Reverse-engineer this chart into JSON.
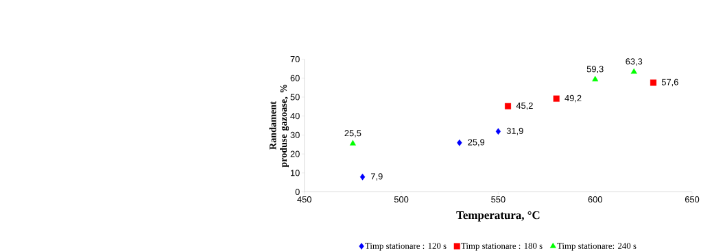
{
  "chart_data": {
    "type": "scatter",
    "xlabel": "Temperatura, °C",
    "ylabel": "Randament produse gazoase, %",
    "xlim": [
      450,
      650
    ],
    "xticks": [
      450,
      500,
      550,
      600,
      650
    ],
    "ylim": [
      0,
      70
    ],
    "yticks": [
      0,
      10,
      20,
      30,
      40,
      50,
      60,
      70
    ],
    "legend": "bottom",
    "grid": false,
    "series": [
      {
        "name": "Timp stationare : 120 s",
        "color": "#0000ff",
        "marker": "diamond",
        "x": [
          480,
          530,
          550
        ],
        "values": [
          7.9,
          25.9,
          31.9
        ],
        "value_labels": [
          "7,9",
          "25,9",
          "31,9"
        ]
      },
      {
        "name": "Timp stationare : 180 s",
        "color": "#ff0000",
        "marker": "square",
        "x": [
          555,
          580,
          630
        ],
        "values": [
          45.2,
          49.2,
          57.6
        ],
        "value_labels": [
          "45,2",
          "49,2",
          "57,6"
        ]
      },
      {
        "name": "Timp stationare: 240 s",
        "color": "#00ff00",
        "marker": "triangle",
        "x": [
          475,
          600,
          620
        ],
        "values": [
          25.5,
          59.3,
          63.3
        ],
        "value_labels": [
          "25,5",
          "59,3",
          "63,3"
        ]
      }
    ]
  }
}
